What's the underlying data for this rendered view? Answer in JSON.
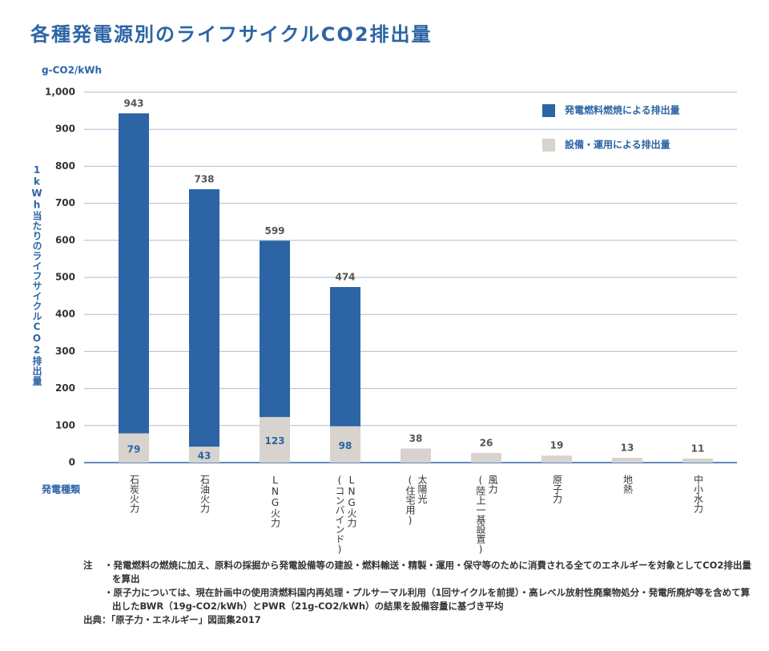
{
  "chart_data": {
    "type": "stacked_bar",
    "title": "各種発電源別のライフサイクルCO2排出量",
    "unit_label": "g-CO2/kWh",
    "y_axis_title": "1kWh当たりのライフサイクルCO2排出量",
    "x_axis_title": "発電種類",
    "categories": [
      [
        "石炭火力"
      ],
      [
        "石油火力"
      ],
      [
        "LNG火力"
      ],
      [
        "LNG火力",
        "(コンバインド)"
      ],
      [
        "太陽光",
        "(住宅用)"
      ],
      [
        "風力",
        "(陸上一基設置)"
      ],
      [
        "原子力"
      ],
      [
        "地熱"
      ],
      [
        "中小水力"
      ]
    ],
    "series": [
      {
        "name": "設備・運用による排出量",
        "color": "#d8d3ce",
        "values": [
          79,
          43,
          123,
          98,
          38,
          26,
          19,
          13,
          11
        ]
      },
      {
        "name": "発電燃料燃焼による排出量",
        "color": "#2c64a5",
        "values": [
          864,
          695,
          476,
          376,
          null,
          null,
          null,
          null,
          null
        ]
      }
    ],
    "totals": [
      943,
      738,
      599,
      474,
      38,
      26,
      19,
      13,
      11
    ],
    "ylim": [
      0,
      1000
    ],
    "yticks": [
      0,
      100,
      200,
      300,
      400,
      500,
      600,
      700,
      800,
      900,
      {
        "value": 1000,
        "label": "1,000"
      }
    ],
    "grid": true
  },
  "notes": {
    "label": "注",
    "items": [
      "・発電燃料の燃焼に加え、原料の採掘から発電設備等の建設・燃料輸送・精製・運用・保守等のために消費される全てのエネルギーを対象としてCO2排出量を算出",
      "・原子力については、現在計画中の使用済燃料国内再処理・プルサーマル利用（1回サイクルを前提）・高レベル放射性廃棄物処分・発電所廃炉等を含めて算出したBWR（19g-CO2/kWh）とPWR（21g-CO2/kWh）の結果を設備容量に基づき平均"
    ]
  },
  "source": "出典：「原子力・エネルギー」図面集2017"
}
